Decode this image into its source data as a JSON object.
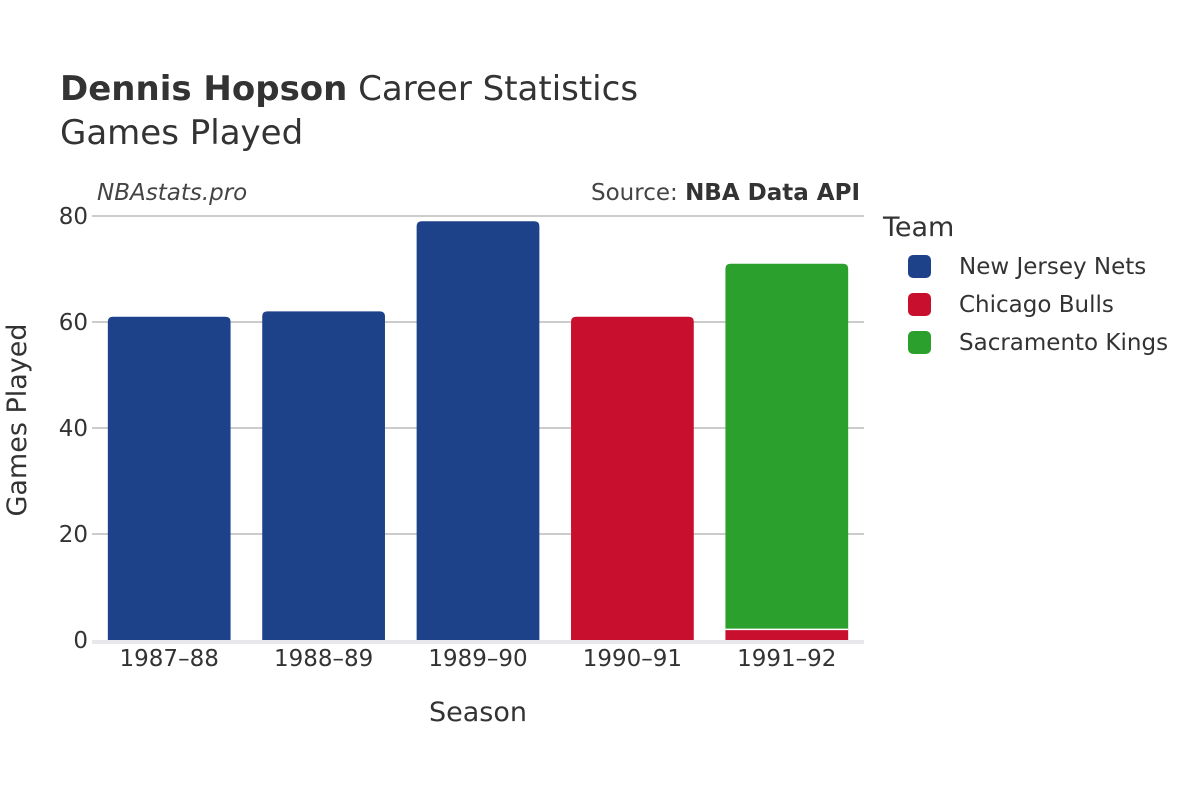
{
  "header": {
    "title_bold": "Dennis Hopson",
    "title_rest": " Career Statistics",
    "subtitle": "Games Played"
  },
  "credit": {
    "site": "NBAstats.pro",
    "source_prefix": "Source: ",
    "source_name": "NBA Data API"
  },
  "legend": {
    "title": "Team"
  },
  "chart_data": {
    "type": "bar",
    "stacked": true,
    "categories": [
      "1987–88",
      "1988–89",
      "1989–90",
      "1990–91",
      "1991–92"
    ],
    "series": [
      {
        "name": "New Jersey Nets",
        "color": "#1d428a",
        "values": [
          61,
          62,
          79,
          0,
          0
        ]
      },
      {
        "name": "Chicago Bulls",
        "color": "#c8102e",
        "values": [
          0,
          0,
          0,
          61,
          2
        ]
      },
      {
        "name": "Sacramento Kings",
        "color": "#2ca02c",
        "values": [
          0,
          0,
          0,
          0,
          69
        ]
      }
    ],
    "xlabel": "Season",
    "ylabel": "Games Played",
    "ylim": [
      0,
      80
    ],
    "yticks": [
      0,
      20,
      40,
      60,
      80
    ],
    "grid": true,
    "legend_position": "right"
  }
}
